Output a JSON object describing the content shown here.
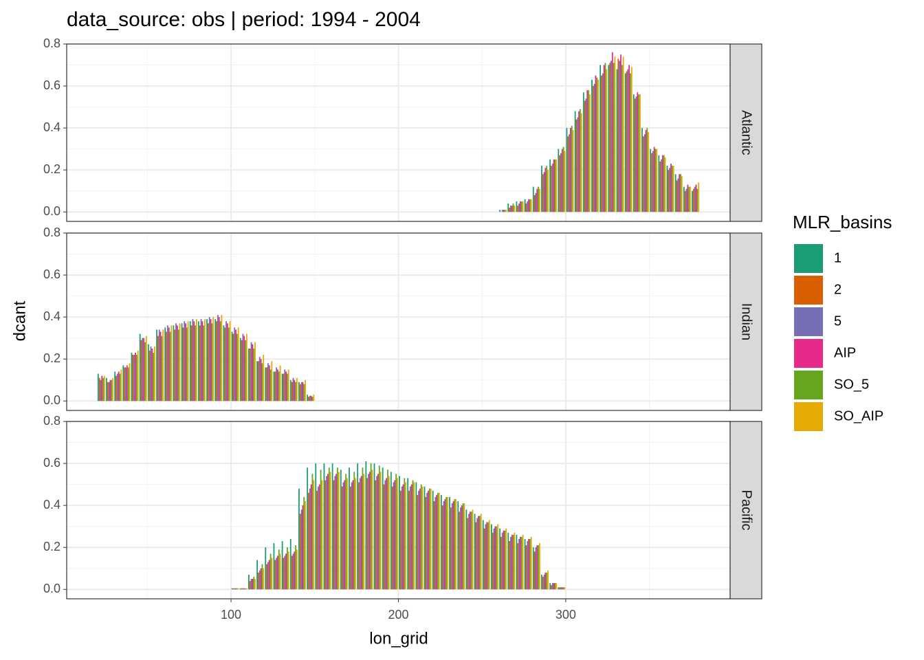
{
  "chart_data": {
    "type": "bar",
    "title": "data_source: obs | period: 1994 - 2004",
    "x_label": "lon_grid",
    "y_label": "dcant",
    "legend_title": "MLR_basins",
    "legend": [
      {
        "name": "1",
        "color": "#1b9e77"
      },
      {
        "name": "2",
        "color": "#d95f02"
      },
      {
        "name": "5",
        "color": "#7570b3"
      },
      {
        "name": "AIP",
        "color": "#e7298a"
      },
      {
        "name": "SO_5",
        "color": "#66a61e"
      },
      {
        "name": "SO_AIP",
        "color": "#e6ab02"
      }
    ],
    "xlim": [
      1.8,
      398.2
    ],
    "xticks": [
      100,
      200,
      300
    ],
    "xminor": [
      50,
      150,
      250,
      350
    ],
    "ylim": [
      -0.045,
      0.8
    ],
    "yticks": [
      {
        "value": 0,
        "label": "0.0"
      },
      0.2,
      0.4,
      0.6,
      0.8
    ],
    "yminor": [
      0.1,
      0.3,
      0.5,
      0.7
    ],
    "grid": true,
    "panels": [
      {
        "strip": "Atlantic",
        "x": [
          262.5,
          267.5,
          272.5,
          277.5,
          282.5,
          287.5,
          292.5,
          297.5,
          302.5,
          307.5,
          312.5,
          317.5,
          322.5,
          327.5,
          332.5,
          337.5,
          342.5,
          347.5,
          352.5,
          357.5,
          362.5,
          367.5,
          372.5,
          377.5
        ],
        "series": [
          {
            "values": [
              0.01,
              0.04,
              0.05,
              0.06,
              0.12,
              0.22,
              0.25,
              0.3,
              0.4,
              0.48,
              0.57,
              0.63,
              0.7,
              0.7,
              0.68,
              0.66,
              0.56,
              0.4,
              0.3,
              0.27,
              0.22,
              0.18,
              0.12,
              0.1
            ]
          },
          {
            "values": [
              0.0,
              0.02,
              0.03,
              0.04,
              0.08,
              0.18,
              0.22,
              0.27,
              0.36,
              0.44,
              0.53,
              0.6,
              0.65,
              0.71,
              0.73,
              0.67,
              0.54,
              0.36,
              0.28,
              0.24,
              0.2,
              0.15,
              0.1,
              0.11
            ]
          },
          {
            "values": [
              0.01,
              0.03,
              0.04,
              0.05,
              0.09,
              0.19,
              0.23,
              0.28,
              0.37,
              0.45,
              0.54,
              0.61,
              0.66,
              0.72,
              0.72,
              0.68,
              0.55,
              0.37,
              0.29,
              0.25,
              0.21,
              0.16,
              0.11,
              0.12
            ]
          },
          {
            "values": [
              0.01,
              0.03,
              0.05,
              0.06,
              0.11,
              0.21,
              0.25,
              0.3,
              0.4,
              0.48,
              0.58,
              0.65,
              0.7,
              0.76,
              0.75,
              0.7,
              0.57,
              0.39,
              0.31,
              0.27,
              0.23,
              0.18,
              0.13,
              0.13
            ]
          },
          {
            "values": [
              0.01,
              0.04,
              0.05,
              0.06,
              0.12,
              0.22,
              0.25,
              0.31,
              0.41,
              0.49,
              0.58,
              0.64,
              0.71,
              0.71,
              0.7,
              0.66,
              0.56,
              0.4,
              0.3,
              0.27,
              0.22,
              0.18,
              0.12,
              0.11
            ]
          },
          {
            "values": [
              0.01,
              0.03,
              0.05,
              0.06,
              0.11,
              0.2,
              0.25,
              0.29,
              0.39,
              0.47,
              0.56,
              0.63,
              0.68,
              0.74,
              0.74,
              0.69,
              0.56,
              0.38,
              0.3,
              0.26,
              0.22,
              0.17,
              0.12,
              0.14
            ]
          }
        ]
      },
      {
        "strip": "Indian",
        "x": [
          22.5,
          27.5,
          32.5,
          37.5,
          42.5,
          47.5,
          52.5,
          57.5,
          62.5,
          67.5,
          72.5,
          77.5,
          82.5,
          87.5,
          92.5,
          97.5,
          102.5,
          107.5,
          112.5,
          117.5,
          122.5,
          127.5,
          132.5,
          137.5,
          142.5,
          147.5
        ],
        "series": [
          {
            "values": [
              0.13,
              0.11,
              0.14,
              0.17,
              0.23,
              0.32,
              0.27,
              0.34,
              0.35,
              0.36,
              0.37,
              0.38,
              0.38,
              0.39,
              0.39,
              0.36,
              0.33,
              0.3,
              0.25,
              0.19,
              0.16,
              0.14,
              0.13,
              0.1,
              0.09,
              0.03
            ]
          },
          {
            "values": [
              0.11,
              0.09,
              0.12,
              0.16,
              0.22,
              0.29,
              0.24,
              0.31,
              0.33,
              0.34,
              0.35,
              0.36,
              0.36,
              0.37,
              0.38,
              0.35,
              0.32,
              0.29,
              0.25,
              0.19,
              0.16,
              0.14,
              0.13,
              0.09,
              0.08,
              0.02
            ]
          },
          {
            "values": [
              0.1,
              0.09,
              0.13,
              0.16,
              0.22,
              0.3,
              0.26,
              0.34,
              0.36,
              0.37,
              0.38,
              0.39,
              0.39,
              0.4,
              0.41,
              0.38,
              0.35,
              0.32,
              0.28,
              0.21,
              0.18,
              0.16,
              0.15,
              0.11,
              0.09,
              0.025
            ]
          },
          {
            "values": [
              0.12,
              0.1,
              0.14,
              0.17,
              0.23,
              0.3,
              0.25,
              0.33,
              0.35,
              0.36,
              0.37,
              0.38,
              0.38,
              0.39,
              0.4,
              0.37,
              0.34,
              0.31,
              0.27,
              0.2,
              0.17,
              0.15,
              0.14,
              0.1,
              0.09,
              0.025
            ]
          },
          {
            "values": [
              0.11,
              0.1,
              0.13,
              0.16,
              0.22,
              0.28,
              0.23,
              0.31,
              0.33,
              0.34,
              0.35,
              0.36,
              0.36,
              0.37,
              0.38,
              0.35,
              0.32,
              0.29,
              0.25,
              0.18,
              0.15,
              0.14,
              0.13,
              0.09,
              0.08,
              0.02
            ]
          },
          {
            "values": [
              0.12,
              0.11,
              0.15,
              0.18,
              0.24,
              0.31,
              0.26,
              0.34,
              0.36,
              0.37,
              0.38,
              0.39,
              0.39,
              0.4,
              0.41,
              0.38,
              0.35,
              0.32,
              0.28,
              0.22,
              0.19,
              0.17,
              0.15,
              0.11,
              0.1,
              0.03
            ]
          }
        ]
      },
      {
        "strip": "Pacific",
        "x": [
          102.5,
          107.5,
          112.5,
          117.5,
          122.5,
          127.5,
          132.5,
          137.5,
          142.5,
          147.5,
          152.5,
          157.5,
          162.5,
          167.5,
          172.5,
          177.5,
          182.5,
          187.5,
          192.5,
          197.5,
          202.5,
          207.5,
          212.5,
          217.5,
          222.5,
          227.5,
          232.5,
          237.5,
          242.5,
          247.5,
          252.5,
          257.5,
          262.5,
          267.5,
          272.5,
          277.5,
          282.5,
          287.5,
          292.5,
          297.5
        ],
        "series": [
          {
            "values": [
              0.005,
              0.005,
              0.07,
              0.14,
              0.2,
              0.22,
              0.23,
              0.24,
              0.48,
              0.58,
              0.6,
              0.6,
              0.6,
              0.57,
              0.58,
              0.6,
              0.61,
              0.6,
              0.58,
              0.56,
              0.54,
              0.53,
              0.51,
              0.49,
              0.47,
              0.45,
              0.44,
              0.42,
              0.38,
              0.36,
              0.33,
              0.31,
              0.29,
              0.27,
              0.26,
              0.24,
              0.2,
              0.07,
              0.03,
              0.01
            ]
          },
          {
            "values": [
              0.005,
              0.005,
              0.04,
              0.08,
              0.12,
              0.14,
              0.15,
              0.16,
              0.36,
              0.46,
              0.47,
              0.52,
              0.52,
              0.49,
              0.49,
              0.51,
              0.53,
              0.52,
              0.5,
              0.49,
              0.47,
              0.47,
              0.45,
              0.44,
              0.42,
              0.4,
              0.39,
              0.37,
              0.34,
              0.32,
              0.29,
              0.27,
              0.25,
              0.23,
              0.22,
              0.21,
              0.18,
              0.06,
              0.02,
              0.01
            ]
          },
          {
            "values": [
              0.005,
              0.005,
              0.05,
              0.09,
              0.13,
              0.15,
              0.16,
              0.17,
              0.38,
              0.48,
              0.49,
              0.54,
              0.54,
              0.51,
              0.51,
              0.53,
              0.55,
              0.54,
              0.52,
              0.51,
              0.49,
              0.49,
              0.47,
              0.46,
              0.44,
              0.42,
              0.41,
              0.39,
              0.36,
              0.34,
              0.31,
              0.29,
              0.27,
              0.25,
              0.24,
              0.23,
              0.2,
              0.07,
              0.03,
              0.01
            ]
          },
          {
            "values": [
              0.005,
              0.005,
              0.05,
              0.1,
              0.14,
              0.16,
              0.17,
              0.18,
              0.4,
              0.5,
              0.5,
              0.55,
              0.55,
              0.52,
              0.52,
              0.54,
              0.56,
              0.55,
              0.53,
              0.52,
              0.5,
              0.5,
              0.48,
              0.47,
              0.45,
              0.43,
              0.42,
              0.4,
              0.37,
              0.35,
              0.32,
              0.3,
              0.28,
              0.26,
              0.25,
              0.24,
              0.21,
              0.08,
              0.03,
              0.01
            ]
          },
          {
            "values": [
              0.005,
              0.005,
              0.06,
              0.12,
              0.17,
              0.19,
              0.2,
              0.21,
              0.44,
              0.55,
              0.57,
              0.58,
              0.58,
              0.55,
              0.56,
              0.58,
              0.6,
              0.59,
              0.57,
              0.55,
              0.53,
              0.52,
              0.5,
              0.48,
              0.46,
              0.44,
              0.43,
              0.41,
              0.37,
              0.35,
              0.32,
              0.3,
              0.28,
              0.26,
              0.25,
              0.24,
              0.21,
              0.08,
              0.03,
              0.01
            ]
          },
          {
            "values": [
              0.005,
              0.005,
              0.05,
              0.1,
              0.15,
              0.17,
              0.18,
              0.19,
              0.42,
              0.52,
              0.52,
              0.56,
              0.56,
              0.53,
              0.53,
              0.55,
              0.57,
              0.56,
              0.54,
              0.53,
              0.51,
              0.51,
              0.49,
              0.48,
              0.46,
              0.44,
              0.43,
              0.41,
              0.38,
              0.36,
              0.33,
              0.31,
              0.29,
              0.27,
              0.26,
              0.25,
              0.22,
              0.09,
              0.03,
              0.01
            ]
          }
        ]
      }
    ]
  }
}
